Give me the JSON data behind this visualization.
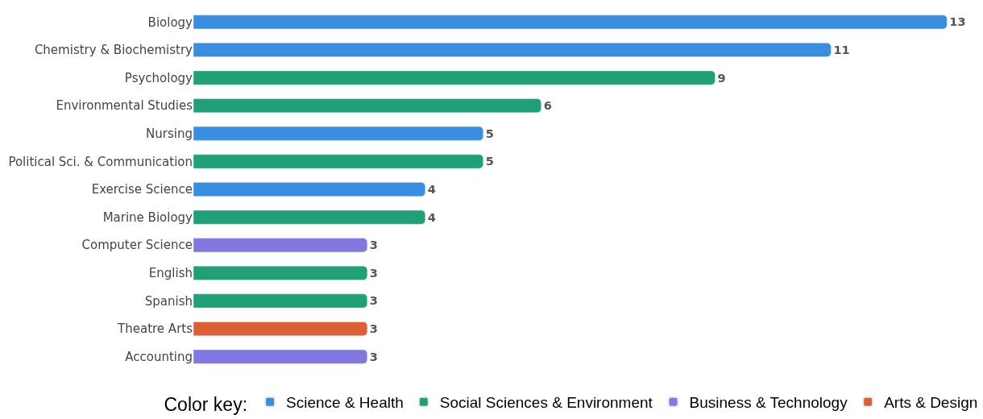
{
  "chart_data": {
    "type": "bar",
    "orientation": "horizontal",
    "data_labels": true,
    "legend": "bottom",
    "legend_title": "Color key:",
    "categories": [
      "Biology",
      "Chemistry & Biochemistry",
      "Psychology",
      "Environmental Studies",
      "Nursing",
      "Political Sci. & Communication",
      "Exercise Science",
      "Marine Biology",
      "Computer Science",
      "English",
      "Spanish",
      "Theatre Arts",
      "Accounting"
    ],
    "series": [
      {
        "name": "Science & Health",
        "color": "#3a8ee0",
        "values": [
          13,
          11,
          null,
          null,
          5,
          null,
          4,
          null,
          null,
          null,
          null,
          null,
          null
        ]
      },
      {
        "name": "Social Sciences & Environment",
        "color": "#1fa077",
        "values": [
          null,
          null,
          9,
          6,
          null,
          5,
          null,
          4,
          null,
          3,
          3,
          null,
          null
        ]
      },
      {
        "name": "Business & Technology",
        "color": "#8377e0",
        "values": [
          null,
          null,
          null,
          null,
          null,
          null,
          null,
          null,
          3,
          null,
          null,
          null,
          3
        ]
      },
      {
        "name": "Arts & Design",
        "color": "#dd6035",
        "values": [
          null,
          null,
          null,
          null,
          null,
          null,
          null,
          null,
          null,
          null,
          null,
          3,
          null
        ]
      }
    ]
  }
}
